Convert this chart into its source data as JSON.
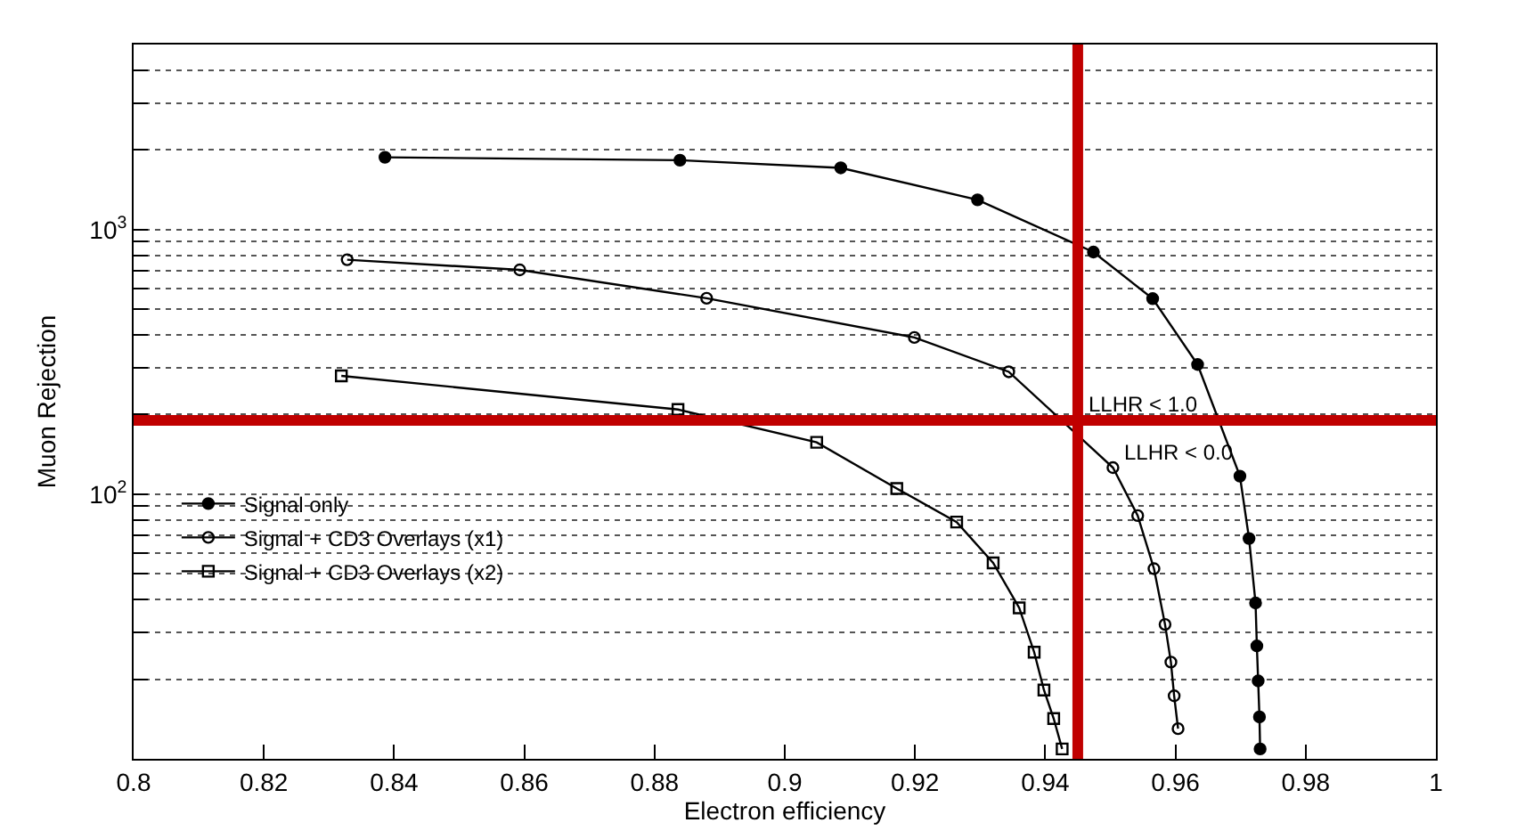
{
  "chart_data": {
    "type": "line",
    "xlabel": "Electron efficiency",
    "ylabel": "Muon Rejection",
    "log": "y",
    "grid": "y",
    "legend": "left",
    "line_style": "solid",
    "xlim": [
      0.8,
      1
    ],
    "xticks": [
      0.8,
      0.82,
      0.84,
      0.86,
      0.88,
      0.9,
      0.92,
      0.94,
      0.96,
      0.98,
      1
    ],
    "ylim": [
      10,
      5000
    ],
    "yticks": [
      {
        "value": 20,
        "label": null
      },
      {
        "value": 30,
        "label": null
      },
      {
        "value": 40,
        "label": null
      },
      {
        "value": 50,
        "label": null
      },
      {
        "value": 60,
        "label": null
      },
      {
        "value": 70,
        "label": null
      },
      {
        "value": 80,
        "label": null
      },
      {
        "value": 90,
        "label": null
      },
      {
        "value": 100,
        "label": "10$^{2}$"
      },
      {
        "value": 200,
        "label": null
      },
      {
        "value": 300,
        "label": null
      },
      {
        "value": 400,
        "label": null
      },
      {
        "value": 500,
        "label": null
      },
      {
        "value": 600,
        "label": null
      },
      {
        "value": 700,
        "label": null
      },
      {
        "value": 800,
        "label": null
      },
      {
        "value": 900,
        "label": null
      },
      {
        "value": 1000,
        "label": "10$^{3}$"
      },
      {
        "value": 2000,
        "label": null
      },
      {
        "value": 3000,
        "label": null
      },
      {
        "value": 4000,
        "label": null
      }
    ],
    "series": [
      {
        "name": "Signal only",
        "color": "#000000",
        "marker": "circle",
        "x": [
          0.8386,
          0.8839,
          0.9086,
          0.9296,
          0.9474,
          0.9565,
          0.9634,
          0.9699,
          0.9713,
          0.9723,
          0.9725,
          0.9727,
          0.9729,
          0.973
        ],
        "values": [
          1875,
          1828,
          1710,
          1295,
          822,
          548,
          309,
          117,
          68,
          38.8,
          26.7,
          19.7,
          14.4,
          10.9
        ]
      },
      {
        "name": "Signal + CD3 Overlays (x1)",
        "color": "#000000",
        "marker": "circle-open",
        "x": [
          0.8328,
          0.8593,
          0.888,
          0.9199,
          0.9344,
          0.9504,
          0.9542,
          0.9567,
          0.9584,
          0.9593,
          0.9598,
          0.9604
        ],
        "values": [
          769,
          704,
          550,
          391,
          290,
          126,
          83,
          52.3,
          32.2,
          23.2,
          17.3,
          13.0
        ]
      },
      {
        "name": "Signal + CD3 Overlays (x2)",
        "color": "#000000",
        "marker": "square-open",
        "x": [
          0.8319,
          0.8836,
          0.9049,
          0.9172,
          0.9264,
          0.932,
          0.936,
          0.9383,
          0.9398,
          0.9413,
          0.9426
        ],
        "values": [
          280,
          209,
          157,
          105,
          78.5,
          55,
          37.2,
          25.3,
          18.2,
          14.2,
          10.9
        ]
      }
    ],
    "ref_lines": [
      {
        "axis": "x",
        "value": 0.945,
        "color": "#c00000"
      },
      {
        "axis": "y",
        "value": 190,
        "color": "#c00000"
      }
    ],
    "annotations": [
      {
        "text": "LLHR < 1.0",
        "x": 0.945,
        "y": 190
      },
      {
        "text": "LLHR < 0.0",
        "x": 0.9504,
        "y": 126
      }
    ]
  }
}
